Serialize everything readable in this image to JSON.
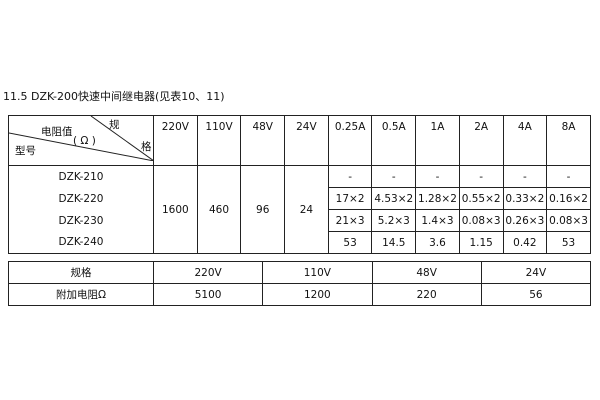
{
  "title": "11.5 DZK-200快速中间继电器(见表10、11)",
  "table1": {
    "corner": {
      "top_right": "规",
      "middle": "电阻值",
      "unit": "( Ω )",
      "right": "格",
      "bottom_left": "型号"
    },
    "headers": [
      "220V",
      "110V",
      "48V",
      "24V",
      "0.25A",
      "0.5A",
      "1A",
      "2A",
      "4A",
      "8A"
    ],
    "models": [
      "DZK-210",
      "DZK-220",
      "DZK-230",
      "DZK-240"
    ],
    "voltage_values": [
      "1600",
      "460",
      "96",
      "24"
    ],
    "current_rows": [
      [
        "-",
        "-",
        "-",
        "-",
        "-",
        "-"
      ],
      [
        "17×2",
        "4.53×2",
        "1.28×2",
        "0.55×2",
        "0.33×2",
        "0.16×2"
      ],
      [
        "21×3",
        "5.2×3",
        "1.4×3",
        "0.08×3",
        "0.26×3",
        "0.08×3"
      ],
      [
        "53",
        "14.5",
        "3.6",
        "1.15",
        "0.42",
        "53"
      ]
    ]
  },
  "table2": {
    "rows": [
      [
        "规格",
        "220V",
        "110V",
        "48V",
        "24V"
      ],
      [
        "附加电阻Ω",
        "5100",
        "1200",
        "220",
        "56"
      ]
    ]
  }
}
